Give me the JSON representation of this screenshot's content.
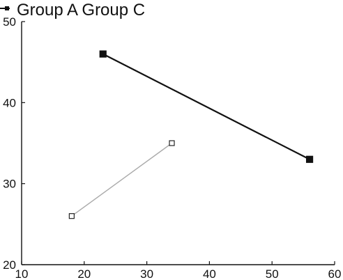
{
  "chart_data": {
    "type": "line",
    "title": "",
    "xlabel": "",
    "ylabel": "",
    "xlim": [
      10,
      60
    ],
    "ylim": [
      20,
      50
    ],
    "xticks": [
      10,
      20,
      30,
      40,
      50,
      60
    ],
    "yticks": [
      20,
      30,
      40,
      50
    ],
    "grid": false,
    "legend": {
      "placement": "top-left",
      "text": "Group A Group C"
    },
    "series": [
      {
        "name": "Group A",
        "color": "#111111",
        "marker": "filled-square",
        "x": [
          23,
          56
        ],
        "y": [
          46,
          33
        ]
      },
      {
        "name": "Group C",
        "color": "#aaaaaa",
        "marker": "open-square",
        "x": [
          18,
          34
        ],
        "y": [
          26,
          35
        ]
      }
    ]
  }
}
